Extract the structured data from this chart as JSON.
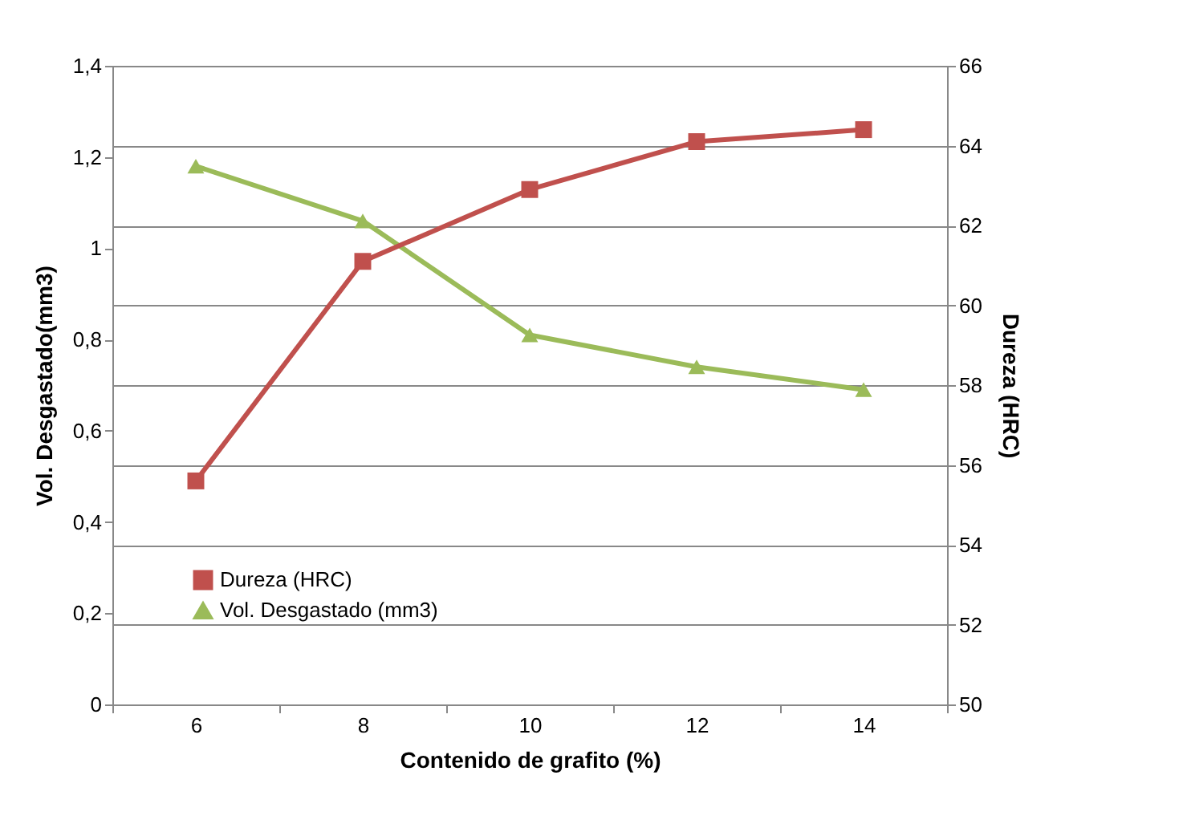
{
  "chart_data": {
    "type": "line",
    "xlabel": "Contenido de grafito (%)",
    "ylabel": "Vol. Desgastado(mm3)",
    "y2label": "Dureza (HRC)",
    "categories": [
      "6",
      "8",
      "10",
      "12",
      "14"
    ],
    "series": [
      {
        "name": "Dureza (HRC)",
        "color": "#c0504d",
        "marker": "square",
        "axis": "y2",
        "values": [
          55.6,
          61.1,
          62.9,
          64.1,
          64.4
        ]
      },
      {
        "name": "Vol. Desgastado (mm3)",
        "color": "#9bbb59",
        "marker": "triangle",
        "values": [
          1.18,
          1.06,
          0.81,
          0.74,
          0.69
        ]
      }
    ],
    "ylim": [
      0,
      1.4
    ],
    "yticks": [
      0,
      {
        "value": 0.2,
        "label": "0,2"
      },
      {
        "value": 0.4,
        "label": "0,4"
      },
      {
        "value": 0.6,
        "label": "0,6"
      },
      {
        "value": 0.8,
        "label": "0,8"
      },
      1,
      {
        "value": 1.2,
        "label": "1,2"
      },
      {
        "value": 1.4,
        "label": "1,4"
      }
    ],
    "y2lim": [
      50,
      66
    ],
    "y2ticks": [
      50,
      52,
      54,
      56,
      58,
      60,
      62,
      64,
      66
    ],
    "grid": "y2",
    "legend": "bottom left",
    "line_style": "solid"
  }
}
